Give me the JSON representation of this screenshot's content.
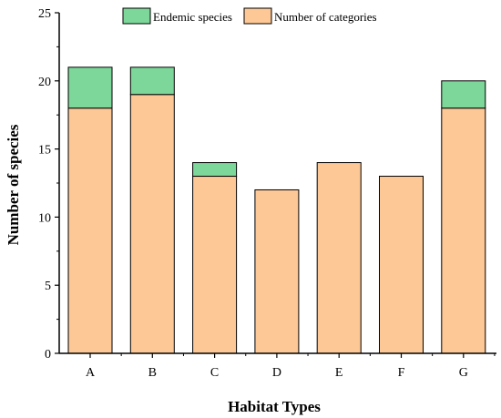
{
  "chart_data": {
    "type": "bar",
    "stacked": true,
    "xlabel": "Habitat Types",
    "ylabel": "Number of species",
    "categories": [
      "A",
      "B",
      "C",
      "D",
      "E",
      "F",
      "G"
    ],
    "series": [
      {
        "name": "Number of categories",
        "values": [
          18,
          19,
          13,
          12,
          14,
          13,
          18
        ],
        "color": "#FDC896"
      },
      {
        "name": "Endemic species",
        "values": [
          3,
          2,
          1,
          0,
          0,
          0,
          2
        ],
        "color": "#7DD79A"
      }
    ],
    "ylim": [
      0,
      25
    ],
    "yticks": [
      0,
      5,
      10,
      15,
      20,
      25
    ],
    "legend_order": [
      "Endemic species",
      "Number of categories"
    ],
    "legend_position": "top",
    "grid": false
  }
}
